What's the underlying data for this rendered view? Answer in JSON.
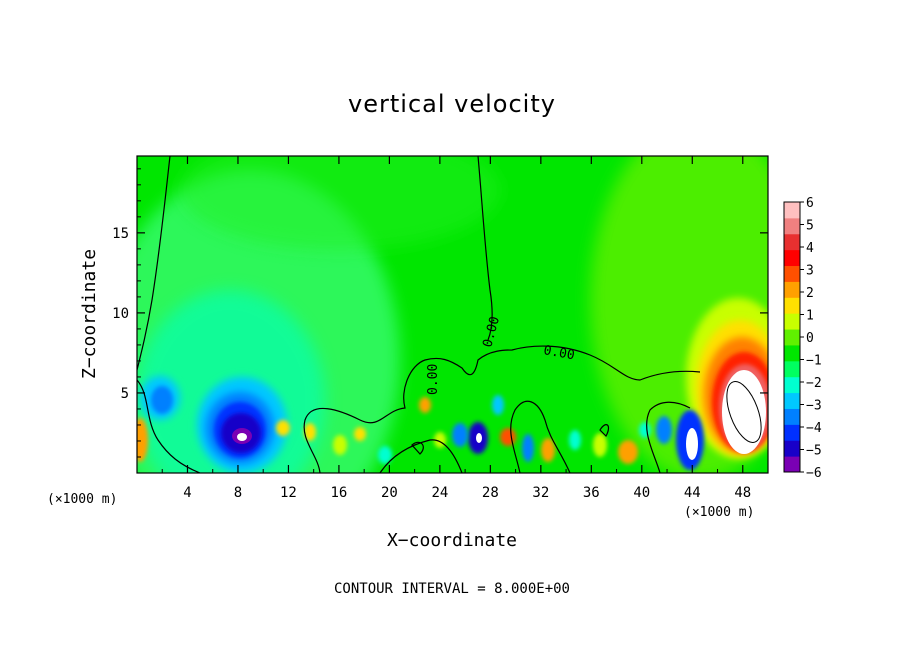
{
  "chart_data": {
    "type": "heatmap",
    "title": "vertical velocity",
    "xlabel": "X−coordinate",
    "ylabel": "Z−coordinate",
    "x_unit": "(×1000 m)",
    "contour_interval_label": "CONTOUR INTERVAL = 8.000E+00",
    "contour_label": "0.00",
    "xlim": [
      0,
      50
    ],
    "ylim": [
      0,
      19.8
    ],
    "x_ticks": [
      4,
      8,
      12,
      16,
      20,
      24,
      28,
      32,
      36,
      40,
      44,
      48
    ],
    "y_ticks": [
      5,
      10,
      15
    ],
    "colorbar": {
      "range": [
        -6,
        6
      ],
      "ticks": [
        6,
        5,
        4,
        3,
        2,
        1,
        0,
        -1,
        -2,
        -3,
        -4,
        -5,
        -6
      ],
      "colors": [
        "#7a00b4",
        "#1800c8",
        "#0030ff",
        "#0080ff",
        "#00c8ff",
        "#00ffd0",
        "#00ff60",
        "#00e600",
        "#60f000",
        "#c8ff00",
        "#ffe000",
        "#ffa000",
        "#ff5000",
        "#ff0000",
        "#e83030",
        "#f08080",
        "#ffc0c0"
      ]
    },
    "features": [
      {
        "label": "downdraft",
        "x": 8.5,
        "z": 2.5,
        "w": -6.5
      },
      {
        "label": "downdraft",
        "x": 1.5,
        "z": 4.5,
        "w": -3.5
      },
      {
        "label": "updraft",
        "x": 47.5,
        "z": 4.5,
        "w": 8.0
      },
      {
        "label": "downdraft",
        "x": 44.0,
        "z": 2.0,
        "w": -5.5
      },
      {
        "label": "downdraft",
        "x": 26.5,
        "z": 2.0,
        "w": -4.5
      }
    ]
  }
}
